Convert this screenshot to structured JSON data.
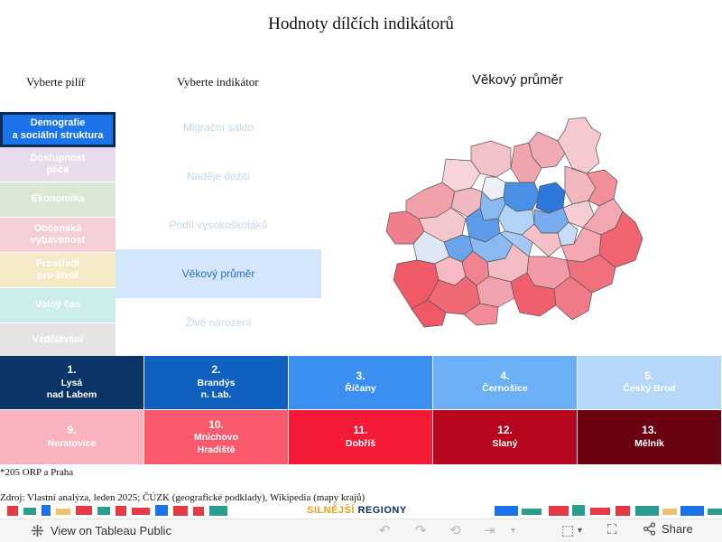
{
  "page_title": "Hodnoty dílčích indikátorů",
  "pillar_heading": "Vyberte pilíř",
  "indicator_heading": "Vyberte indikátor",
  "pillars": [
    {
      "label": "Demografie\na sociální struktura",
      "color": "#1a73e8",
      "active": true
    },
    {
      "label": "Dostupnost\npéče",
      "color": "#e8dcec",
      "active": false
    },
    {
      "label": "Ekonomika",
      "color": "#dbe8d6",
      "active": false
    },
    {
      "label": "Občanská\nvybavenost",
      "color": "#f4cfd6",
      "active": false
    },
    {
      "label": "Prostředí\npro život",
      "color": "#f6e9c6",
      "active": false
    },
    {
      "label": "Volný čas",
      "color": "#cbeeed",
      "active": false
    },
    {
      "label": "Vzdělávání",
      "color": "#e4e4e4",
      "active": false
    }
  ],
  "indicators": [
    {
      "label": "Migrační saldo",
      "active": false
    },
    {
      "label": "Naděje dožití",
      "active": false
    },
    {
      "label": "Podíl vysokoškoláků",
      "active": false
    },
    {
      "label": "Věkový průměr",
      "active": true
    },
    {
      "label": "Živé narození",
      "active": false
    }
  ],
  "map_title": "Věkový průměr",
  "legend": [
    {
      "num": "1.",
      "name": "Lysá\nnad Labem",
      "color": "#0b3566"
    },
    {
      "num": "2.",
      "name": "Brandýs\nn. Lab.",
      "color": "#1060c0"
    },
    {
      "num": "3.",
      "name": "Říčany",
      "color": "#3b8ff0"
    },
    {
      "num": "4.",
      "name": "Černošice",
      "color": "#6bb0f5"
    },
    {
      "num": "5.",
      "name": "Český Brod",
      "color": "#b6d8fa"
    },
    {
      "num": "9.",
      "name": "Neratovice",
      "color": "#f9b3be"
    },
    {
      "num": "10.",
      "name": "Mnichovo\nHradiště",
      "color": "#fb5a6c"
    },
    {
      "num": "11.",
      "name": "Dobříš",
      "color": "#f51a36"
    },
    {
      "num": "12.",
      "name": "Slaný",
      "color": "#b7061d"
    },
    {
      "num": "13.",
      "name": "Mělník",
      "color": "#6a0311"
    }
  ],
  "footnote": "*205 ORP a Praha",
  "source": "Zdroj: Vlastní analýza, leden 2025; ČÚZK (geografické podklady), Wikipedia (mapy krajů)",
  "brand": {
    "prefix": "SILNĚJŠÍ",
    "suffix": "REGIONY"
  },
  "toolbar": {
    "view_label": "View on Tableau Public",
    "share_label": "Share"
  }
}
